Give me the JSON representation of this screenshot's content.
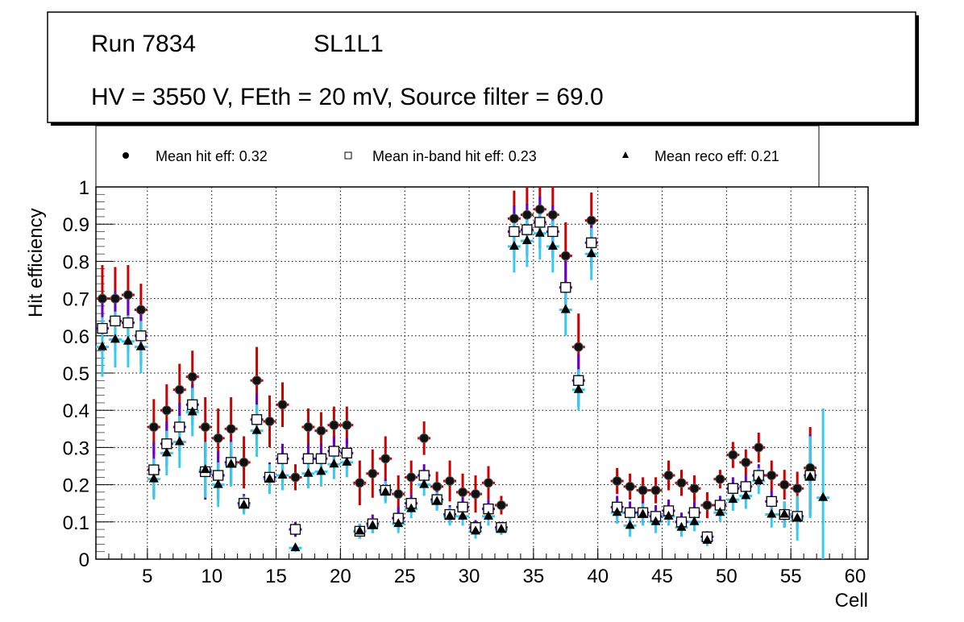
{
  "title_box": {
    "line1_run": "Run 7834",
    "line1_layer": "SL1L1",
    "line2": "HV = 3550 V, FEth = 20 mV, Source filter = 69.0"
  },
  "legend": [
    {
      "marker": "filled-circle",
      "label": "Mean hit  eff: 0.32"
    },
    {
      "marker": "open-square",
      "label": "Mean in-band hit eff: 0.23"
    },
    {
      "marker": "filled-triangle",
      "label": "Mean reco eff: 0.21"
    }
  ],
  "colors": {
    "hit_error": "#cc0000",
    "inband_error": "#6600cc",
    "reco_error": "#33ccee",
    "markers": "#000000",
    "grid": "#000000"
  },
  "chart_data": {
    "type": "scatter",
    "title": "Run 7834 SL1L1 — HV = 3550 V, FEth = 20 mV, Source filter = 69.0",
    "xlabel": "Cell",
    "ylabel": "Hit efficiency",
    "xlim": [
      1,
      61
    ],
    "ylim": [
      0,
      1
    ],
    "grid": true,
    "legend_position": "top",
    "x_ticks": [
      "5",
      "10",
      "15",
      "20",
      "25",
      "30",
      "35",
      "40",
      "45",
      "50",
      "55",
      "60"
    ],
    "y_ticks": [
      "0",
      "0.1",
      "0.2",
      "0.3",
      "0.4",
      "0.5",
      "0.6",
      "0.7",
      "0.8",
      "0.9",
      "1"
    ],
    "cells": [
      1,
      2,
      3,
      4,
      5,
      6,
      7,
      8,
      9,
      10,
      11,
      12,
      13,
      14,
      15,
      16,
      17,
      18,
      19,
      20,
      21,
      22,
      23,
      24,
      25,
      26,
      27,
      28,
      29,
      30,
      31,
      32,
      33,
      34,
      35,
      36,
      37,
      38,
      39,
      41,
      42,
      43,
      44,
      45,
      46,
      47,
      48,
      49,
      50,
      51,
      52,
      53,
      54,
      55,
      56,
      57
    ],
    "series": [
      {
        "name": "Mean hit  eff: 0.32",
        "marker": "filled-circle",
        "values": [
          0.7,
          0.7,
          0.71,
          0.67,
          0.355,
          0.4,
          0.455,
          0.49,
          0.355,
          0.325,
          0.35,
          0.26,
          0.48,
          0.37,
          0.415,
          0.22,
          0.355,
          0.345,
          0.36,
          0.36,
          0.205,
          0.23,
          0.27,
          0.175,
          0.22,
          0.325,
          0.195,
          0.21,
          0.18,
          0.175,
          0.205,
          0.145,
          0.915,
          0.925,
          0.94,
          0.925,
          0.815,
          0.57,
          0.91,
          0.21,
          0.195,
          0.185,
          0.185,
          0.225,
          0.205,
          0.19,
          0.145,
          0.215,
          0.28,
          0.26,
          0.3,
          0.225,
          0.2,
          0.19,
          0.245,
          null
        ],
        "errors": [
          0.09,
          0.085,
          0.08,
          0.07,
          0.075,
          0.07,
          0.07,
          0.07,
          0.08,
          0.08,
          0.085,
          0.07,
          0.09,
          0.07,
          0.06,
          0.035,
          0.05,
          0.05,
          0.05,
          0.05,
          0.06,
          0.065,
          0.06,
          0.05,
          0.045,
          0.045,
          0.04,
          0.055,
          0.05,
          0.05,
          0.045,
          0.025,
          0.075,
          0.075,
          0.07,
          0.075,
          0.09,
          0.09,
          0.075,
          0.035,
          0.035,
          0.035,
          0.035,
          0.04,
          0.035,
          0.035,
          0.035,
          0.025,
          0.035,
          0.035,
          0.04,
          0.04,
          0.04,
          0.045,
          0.11,
          null
        ]
      },
      {
        "name": "Mean in-band hit eff: 0.23",
        "marker": "open-square",
        "values": [
          0.62,
          0.64,
          0.635,
          0.6,
          0.24,
          0.31,
          0.355,
          0.415,
          0.235,
          0.225,
          0.26,
          0.15,
          0.375,
          0.22,
          0.27,
          0.08,
          0.27,
          0.27,
          0.29,
          0.285,
          0.075,
          0.095,
          0.185,
          0.11,
          0.15,
          0.225,
          0.16,
          0.12,
          0.14,
          0.085,
          0.135,
          0.085,
          0.88,
          0.885,
          0.905,
          0.88,
          0.73,
          0.48,
          0.85,
          0.14,
          0.125,
          0.125,
          0.115,
          0.13,
          0.1,
          0.125,
          0.06,
          0.145,
          0.19,
          0.195,
          0.225,
          0.155,
          0.12,
          0.115,
          0.225,
          null
        ],
        "errors": [
          0.08,
          0.08,
          0.08,
          0.08,
          0.075,
          0.06,
          0.065,
          0.055,
          0.075,
          0.065,
          0.06,
          0.025,
          0.07,
          0.04,
          0.04,
          0.02,
          0.04,
          0.04,
          0.04,
          0.04,
          0.02,
          0.025,
          0.03,
          0.03,
          0.025,
          0.03,
          0.025,
          0.025,
          0.025,
          0.02,
          0.025,
          0.015,
          0.07,
          0.07,
          0.07,
          0.07,
          0.07,
          0.07,
          0.07,
          0.03,
          0.03,
          0.03,
          0.03,
          0.03,
          0.025,
          0.03,
          0.015,
          0.025,
          0.03,
          0.03,
          0.03,
          0.03,
          0.035,
          0.035,
          0.11,
          null
        ]
      },
      {
        "name": "Mean reco eff: 0.21",
        "marker": "filled-triangle",
        "values": [
          0.57,
          0.59,
          0.585,
          0.57,
          0.215,
          0.285,
          0.315,
          0.395,
          0.24,
          0.2,
          0.255,
          0.145,
          0.345,
          0.215,
          0.225,
          0.03,
          0.23,
          0.235,
          0.255,
          0.26,
          0.075,
          0.09,
          0.18,
          0.095,
          0.135,
          0.2,
          0.155,
          0.115,
          0.115,
          0.075,
          0.115,
          0.08,
          0.84,
          0.855,
          0.875,
          0.84,
          0.67,
          0.455,
          0.82,
          0.125,
          0.09,
          0.12,
          0.1,
          0.115,
          0.085,
          0.1,
          0.05,
          0.125,
          0.16,
          0.17,
          0.21,
          0.12,
          0.12,
          0.11,
          0.22,
          0.165
        ],
        "errors": [
          0.08,
          0.075,
          0.07,
          0.07,
          0.055,
          0.06,
          0.07,
          0.065,
          0.075,
          0.06,
          0.06,
          0.025,
          0.07,
          0.04,
          0.04,
          0.01,
          0.04,
          0.04,
          0.04,
          0.04,
          0.02,
          0.02,
          0.03,
          0.025,
          0.025,
          0.03,
          0.025,
          0.025,
          0.025,
          0.02,
          0.025,
          0.015,
          0.07,
          0.07,
          0.07,
          0.07,
          0.07,
          0.055,
          0.07,
          0.03,
          0.03,
          0.03,
          0.03,
          0.025,
          0.025,
          0.025,
          0.015,
          0.025,
          0.03,
          0.035,
          0.035,
          0.035,
          0.035,
          0.06,
          0.11,
          0.24
        ]
      }
    ]
  }
}
